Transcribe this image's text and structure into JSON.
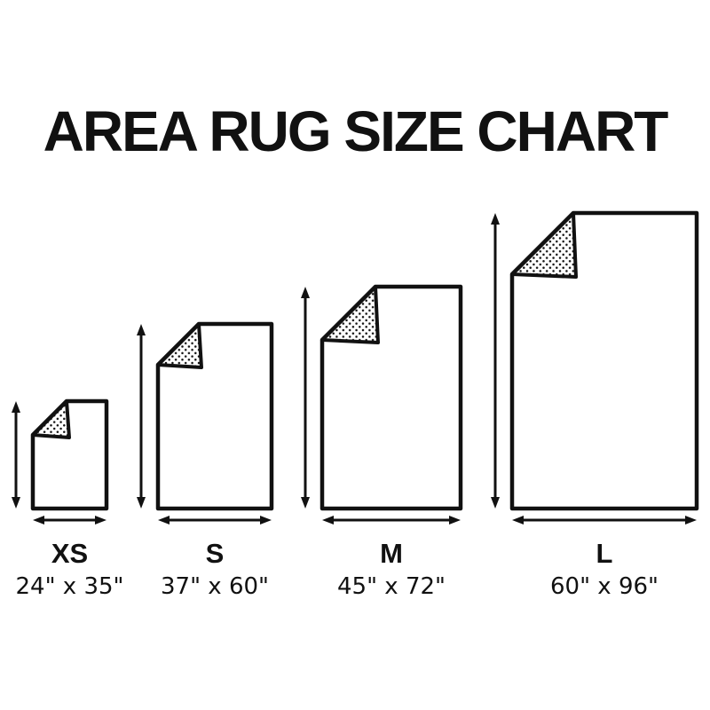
{
  "title": "AREA RUG SIZE CHART",
  "colors": {
    "ink": "#111111",
    "background": "#ffffff"
  },
  "diagram": {
    "rugs": [
      {
        "id": "xs",
        "label": "XS",
        "size_text": "24\" x 35\"",
        "width_in": 24,
        "height_in": 35
      },
      {
        "id": "s",
        "label": "S",
        "size_text": "37\" x 60\"",
        "width_in": 37,
        "height_in": 60
      },
      {
        "id": "m",
        "label": "M",
        "size_text": "45\" x 72\"",
        "width_in": 45,
        "height_in": 72
      },
      {
        "id": "l",
        "label": "L",
        "size_text": "60\" x 96\"",
        "width_in": 60,
        "height_in": 96
      }
    ]
  }
}
